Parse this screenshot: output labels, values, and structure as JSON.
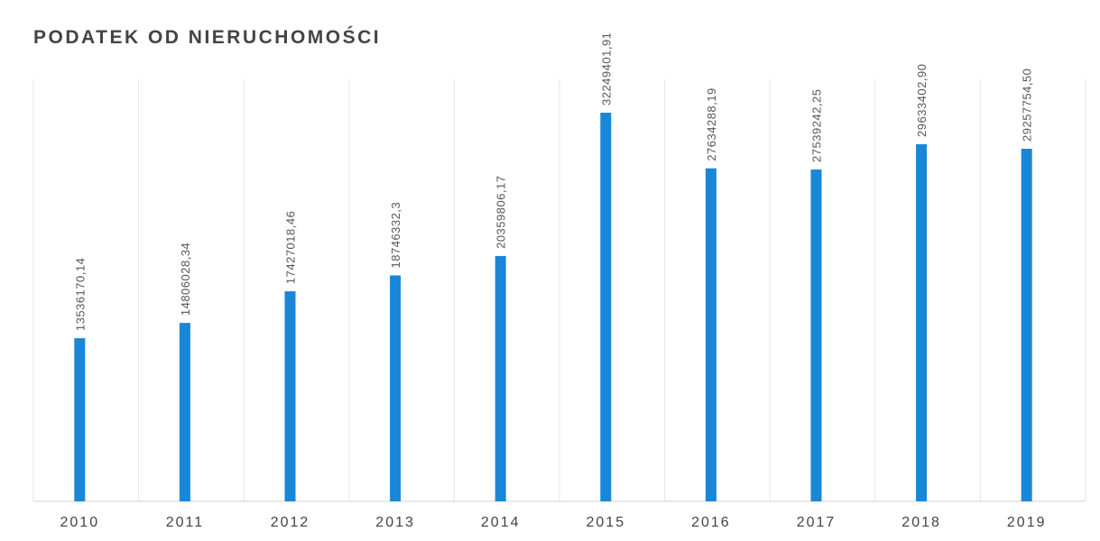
{
  "chart_data": {
    "type": "bar",
    "title": "PODATEK OD NIERUCHOMOŚCI",
    "categories": [
      "2010",
      "2011",
      "2012",
      "2013",
      "2014",
      "2015",
      "2016",
      "2017",
      "2018",
      "2019"
    ],
    "values": [
      13536170.14,
      14806028.34,
      17427018.46,
      18746332.3,
      20359806.17,
      32249401.91,
      27634288.19,
      27539242.25,
      29633402.9,
      29257754.5
    ],
    "value_labels": [
      "13536170,14",
      "14806028,34",
      "17427018,46",
      "18746332,3",
      "20359806,17",
      "32249401,91",
      "27634288,19",
      "27539242,25",
      "29633402,90",
      "29257754,50"
    ],
    "color": "#1a86d6"
  }
}
